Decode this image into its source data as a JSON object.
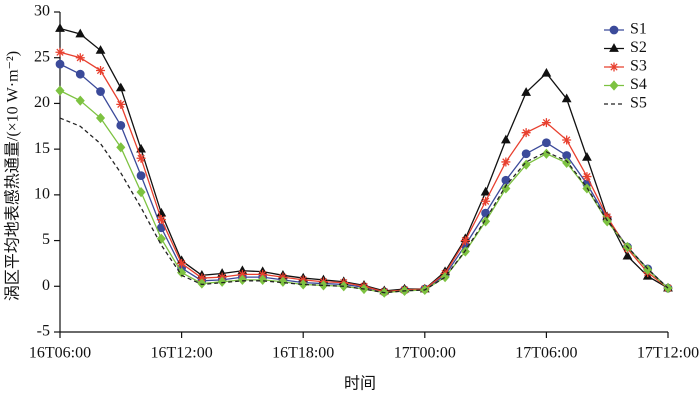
{
  "chart_data": {
    "type": "line",
    "xlabel": "时间",
    "ylabel": "涡区平均地表感热通量/(×10 W·m⁻²)",
    "categories": [
      "16T06:00",
      null,
      null,
      null,
      null,
      null,
      "16T12:00",
      null,
      null,
      null,
      null,
      null,
      "16T18:00",
      null,
      null,
      null,
      null,
      null,
      "17T00:00",
      null,
      null,
      null,
      null,
      null,
      "17T06:00",
      null,
      null,
      null,
      null,
      null,
      "17T12:00"
    ],
    "ylim": [
      -5,
      30
    ],
    "yticks": [
      -5,
      0,
      5,
      10,
      15,
      20,
      25,
      30
    ],
    "legend": "top-right",
    "series": [
      {
        "name": "S1",
        "color": "#3b4a9a",
        "marker": "circle",
        "linestyle": "solid",
        "values": [
          24.3,
          23.2,
          21.3,
          17.6,
          12.1,
          6.4,
          2.0,
          0.6,
          0.7,
          1.0,
          1.0,
          0.7,
          0.4,
          0.3,
          0.2,
          -0.1,
          -0.6,
          -0.4,
          -0.3,
          1.2,
          4.5,
          8.0,
          11.6,
          14.5,
          15.7,
          14.3,
          11.2,
          7.4,
          4.3,
          1.9,
          -0.2
        ]
      },
      {
        "name": "S2",
        "color": "#111111",
        "marker": "triangle",
        "linestyle": "solid",
        "values": [
          28.2,
          27.6,
          25.8,
          21.7,
          15.0,
          8.0,
          2.8,
          1.2,
          1.4,
          1.7,
          1.6,
          1.2,
          0.9,
          0.7,
          0.5,
          0.1,
          -0.5,
          -0.3,
          -0.3,
          1.6,
          5.2,
          10.3,
          16.0,
          21.2,
          23.3,
          20.5,
          14.1,
          7.6,
          3.3,
          1.1,
          -0.2
        ]
      },
      {
        "name": "S3",
        "color": "#e8402f",
        "marker": "star",
        "linestyle": "solid",
        "values": [
          25.6,
          25.0,
          23.6,
          19.9,
          14.0,
          7.3,
          2.5,
          0.9,
          1.0,
          1.3,
          1.3,
          1.0,
          0.7,
          0.5,
          0.4,
          0.0,
          -0.6,
          -0.4,
          -0.3,
          1.4,
          5.0,
          9.3,
          13.6,
          16.8,
          17.9,
          16.0,
          12.0,
          7.6,
          4.1,
          1.5,
          -0.2
        ]
      },
      {
        "name": "S4",
        "color": "#7dc241",
        "marker": "diamond",
        "linestyle": "solid",
        "values": [
          21.4,
          20.3,
          18.4,
          15.2,
          10.3,
          5.2,
          1.5,
          0.3,
          0.5,
          0.7,
          0.7,
          0.5,
          0.2,
          0.1,
          0.0,
          -0.3,
          -0.7,
          -0.5,
          -0.4,
          1.0,
          3.8,
          7.1,
          10.7,
          13.3,
          14.5,
          13.5,
          10.7,
          7.1,
          4.3,
          1.8,
          -0.2
        ]
      },
      {
        "name": "S5",
        "color": "#222222",
        "marker": "none",
        "linestyle": "dashed",
        "values": [
          18.4,
          17.5,
          15.6,
          12.4,
          8.6,
          4.5,
          1.2,
          0.2,
          0.4,
          0.6,
          0.6,
          0.4,
          0.2,
          0.1,
          0.0,
          -0.3,
          -0.7,
          -0.5,
          -0.4,
          1.0,
          3.9,
          7.3,
          11.0,
          13.6,
          14.7,
          13.7,
          10.8,
          7.2,
          4.3,
          1.9,
          -0.2
        ]
      }
    ]
  }
}
